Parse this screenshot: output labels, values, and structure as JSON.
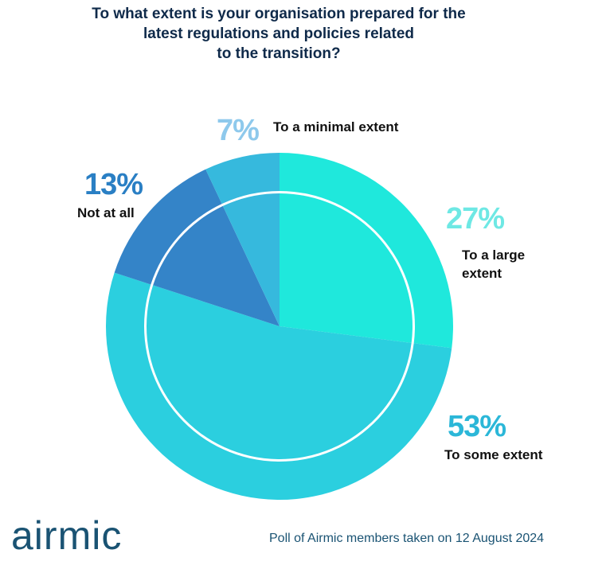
{
  "title_lines": [
    "To what extent is your organisation prepared for the",
    "latest regulations and policies related",
    "to the transition?"
  ],
  "logo_text": "airmic",
  "footer_text": "Poll of Airmic members taken on 12 August 2024",
  "chart_data": {
    "type": "pie",
    "title": "To what extent is your organisation prepared for the latest regulations and policies related to the transition?",
    "slices": [
      {
        "key": "large",
        "label": "To a large extent",
        "label_lines": [
          "To a large",
          "extent"
        ],
        "value": 27,
        "display": "27%",
        "color": "#1fe8dc",
        "pct_color": "#6ee8e4"
      },
      {
        "key": "some",
        "label": "To some extent",
        "label_lines": [
          "To some extent"
        ],
        "value": 53,
        "display": "53%",
        "color": "#2bcfdf",
        "pct_color": "#2bb7d8"
      },
      {
        "key": "notatall",
        "label": "Not at all",
        "label_lines": [
          "Not at all"
        ],
        "value": 13,
        "display": "13%",
        "color": "#3484c8",
        "pct_color": "#2a7fc4"
      },
      {
        "key": "minimal",
        "label": "To a minimal extent",
        "label_lines": [
          "To a minimal extent"
        ],
        "value": 7,
        "display": "7%",
        "color": "#36b9dd",
        "pct_color": "#8ec9ec"
      }
    ],
    "ring_segments": [
      {
        "key": "large",
        "color": "#1fe8dc"
      },
      {
        "key": "some",
        "color": "#2bcfdf"
      },
      {
        "key": "notatall",
        "color": "#3484c8"
      },
      {
        "key": "minimal",
        "color": "#36b9dd"
      }
    ]
  }
}
